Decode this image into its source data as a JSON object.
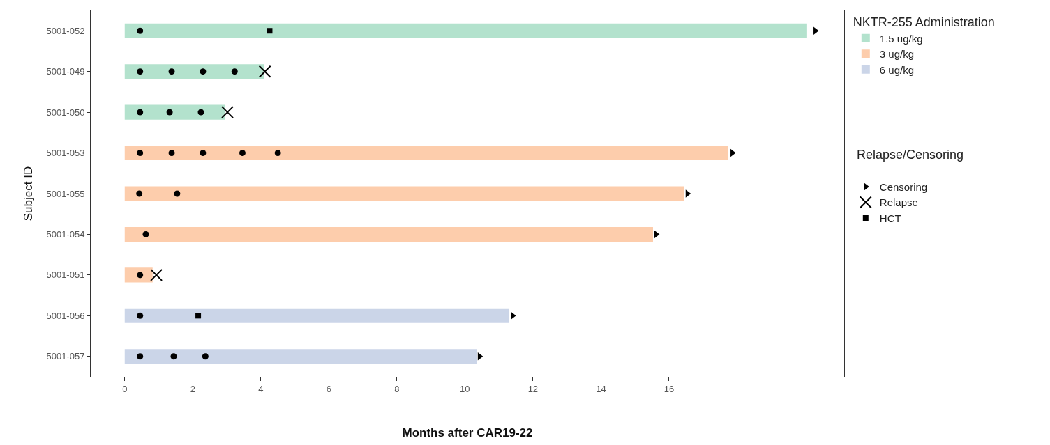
{
  "chart_data": {
    "type": "bar",
    "orientation": "horizontal",
    "xlabel": "Months after CAR19-22",
    "ylabel": "Subject ID",
    "legend_title": "NKTR-255 Administration",
    "legend": "right",
    "categories": [
      "5001-052",
      "5001-049",
      "5001-050",
      "5001-053",
      "5001-055",
      "5001-054",
      "5001-051",
      "5001-056",
      "5001-057"
    ],
    "xlim": [
      -1,
      21.15
    ],
    "xticks": [
      0,
      2,
      4,
      6,
      8,
      10,
      12,
      14,
      16
    ],
    "annotations": [
      "Relapse/Censoring"
    ],
    "series": [
      {
        "name": "1.5 ug/kg",
        "color": "#b3e2cd",
        "values": [
          20.04,
          4.1,
          2.94,
          null,
          null,
          null,
          null,
          null,
          null
        ]
      },
      {
        "name": "3 ug/kg",
        "color": "#fdcdac",
        "values": [
          null,
          null,
          null,
          17.74,
          16.44,
          15.53,
          0.82,
          null,
          null
        ]
      },
      {
        "name": "6 ug/kg",
        "color": "#cbd5e8",
        "values": [
          null,
          null,
          null,
          null,
          null,
          null,
          null,
          11.3,
          10.35
        ]
      },
      {
        "type": "scatter",
        "marker": "circle",
        "color": "#000000",
        "values": [
          0.45,
          0.45,
          0.45,
          0.45,
          0.43,
          0.62,
          0.45,
          0.45,
          0.45
        ]
      },
      {
        "type": "scatter",
        "marker": "circle",
        "color": "#000000",
        "values": [
          null,
          1.38,
          1.32,
          1.38,
          1.54,
          null,
          null,
          null,
          1.44
        ]
      },
      {
        "type": "scatter",
        "marker": "circle",
        "color": "#000000",
        "values": [
          null,
          2.3,
          2.24,
          2.3,
          null,
          null,
          null,
          null,
          2.37
        ]
      },
      {
        "type": "scatter",
        "marker": "circle",
        "color": "#000000",
        "values": [
          null,
          3.23,
          null,
          3.46,
          null,
          null,
          null,
          null,
          null
        ]
      },
      {
        "type": "scatter",
        "marker": "circle",
        "color": "#000000",
        "values": [
          null,
          null,
          null,
          4.5,
          null,
          null,
          null,
          null,
          null
        ]
      },
      {
        "type": "scatter",
        "name": "Censoring",
        "marker": "triangle",
        "color": "#000000",
        "values": [
          20.3,
          null,
          null,
          17.86,
          16.54,
          15.62,
          null,
          11.4,
          10.43
        ]
      },
      {
        "type": "scatter",
        "name": "Relapse",
        "marker": "cross",
        "color": "#000000",
        "values": [
          null,
          4.12,
          3.02,
          null,
          null,
          null,
          0.93,
          null,
          null
        ]
      },
      {
        "type": "scatter",
        "name": "HCT",
        "marker": "square",
        "color": "#000000",
        "values": [
          4.26,
          null,
          null,
          null,
          null,
          null,
          null,
          2.16,
          null
        ]
      }
    ]
  }
}
